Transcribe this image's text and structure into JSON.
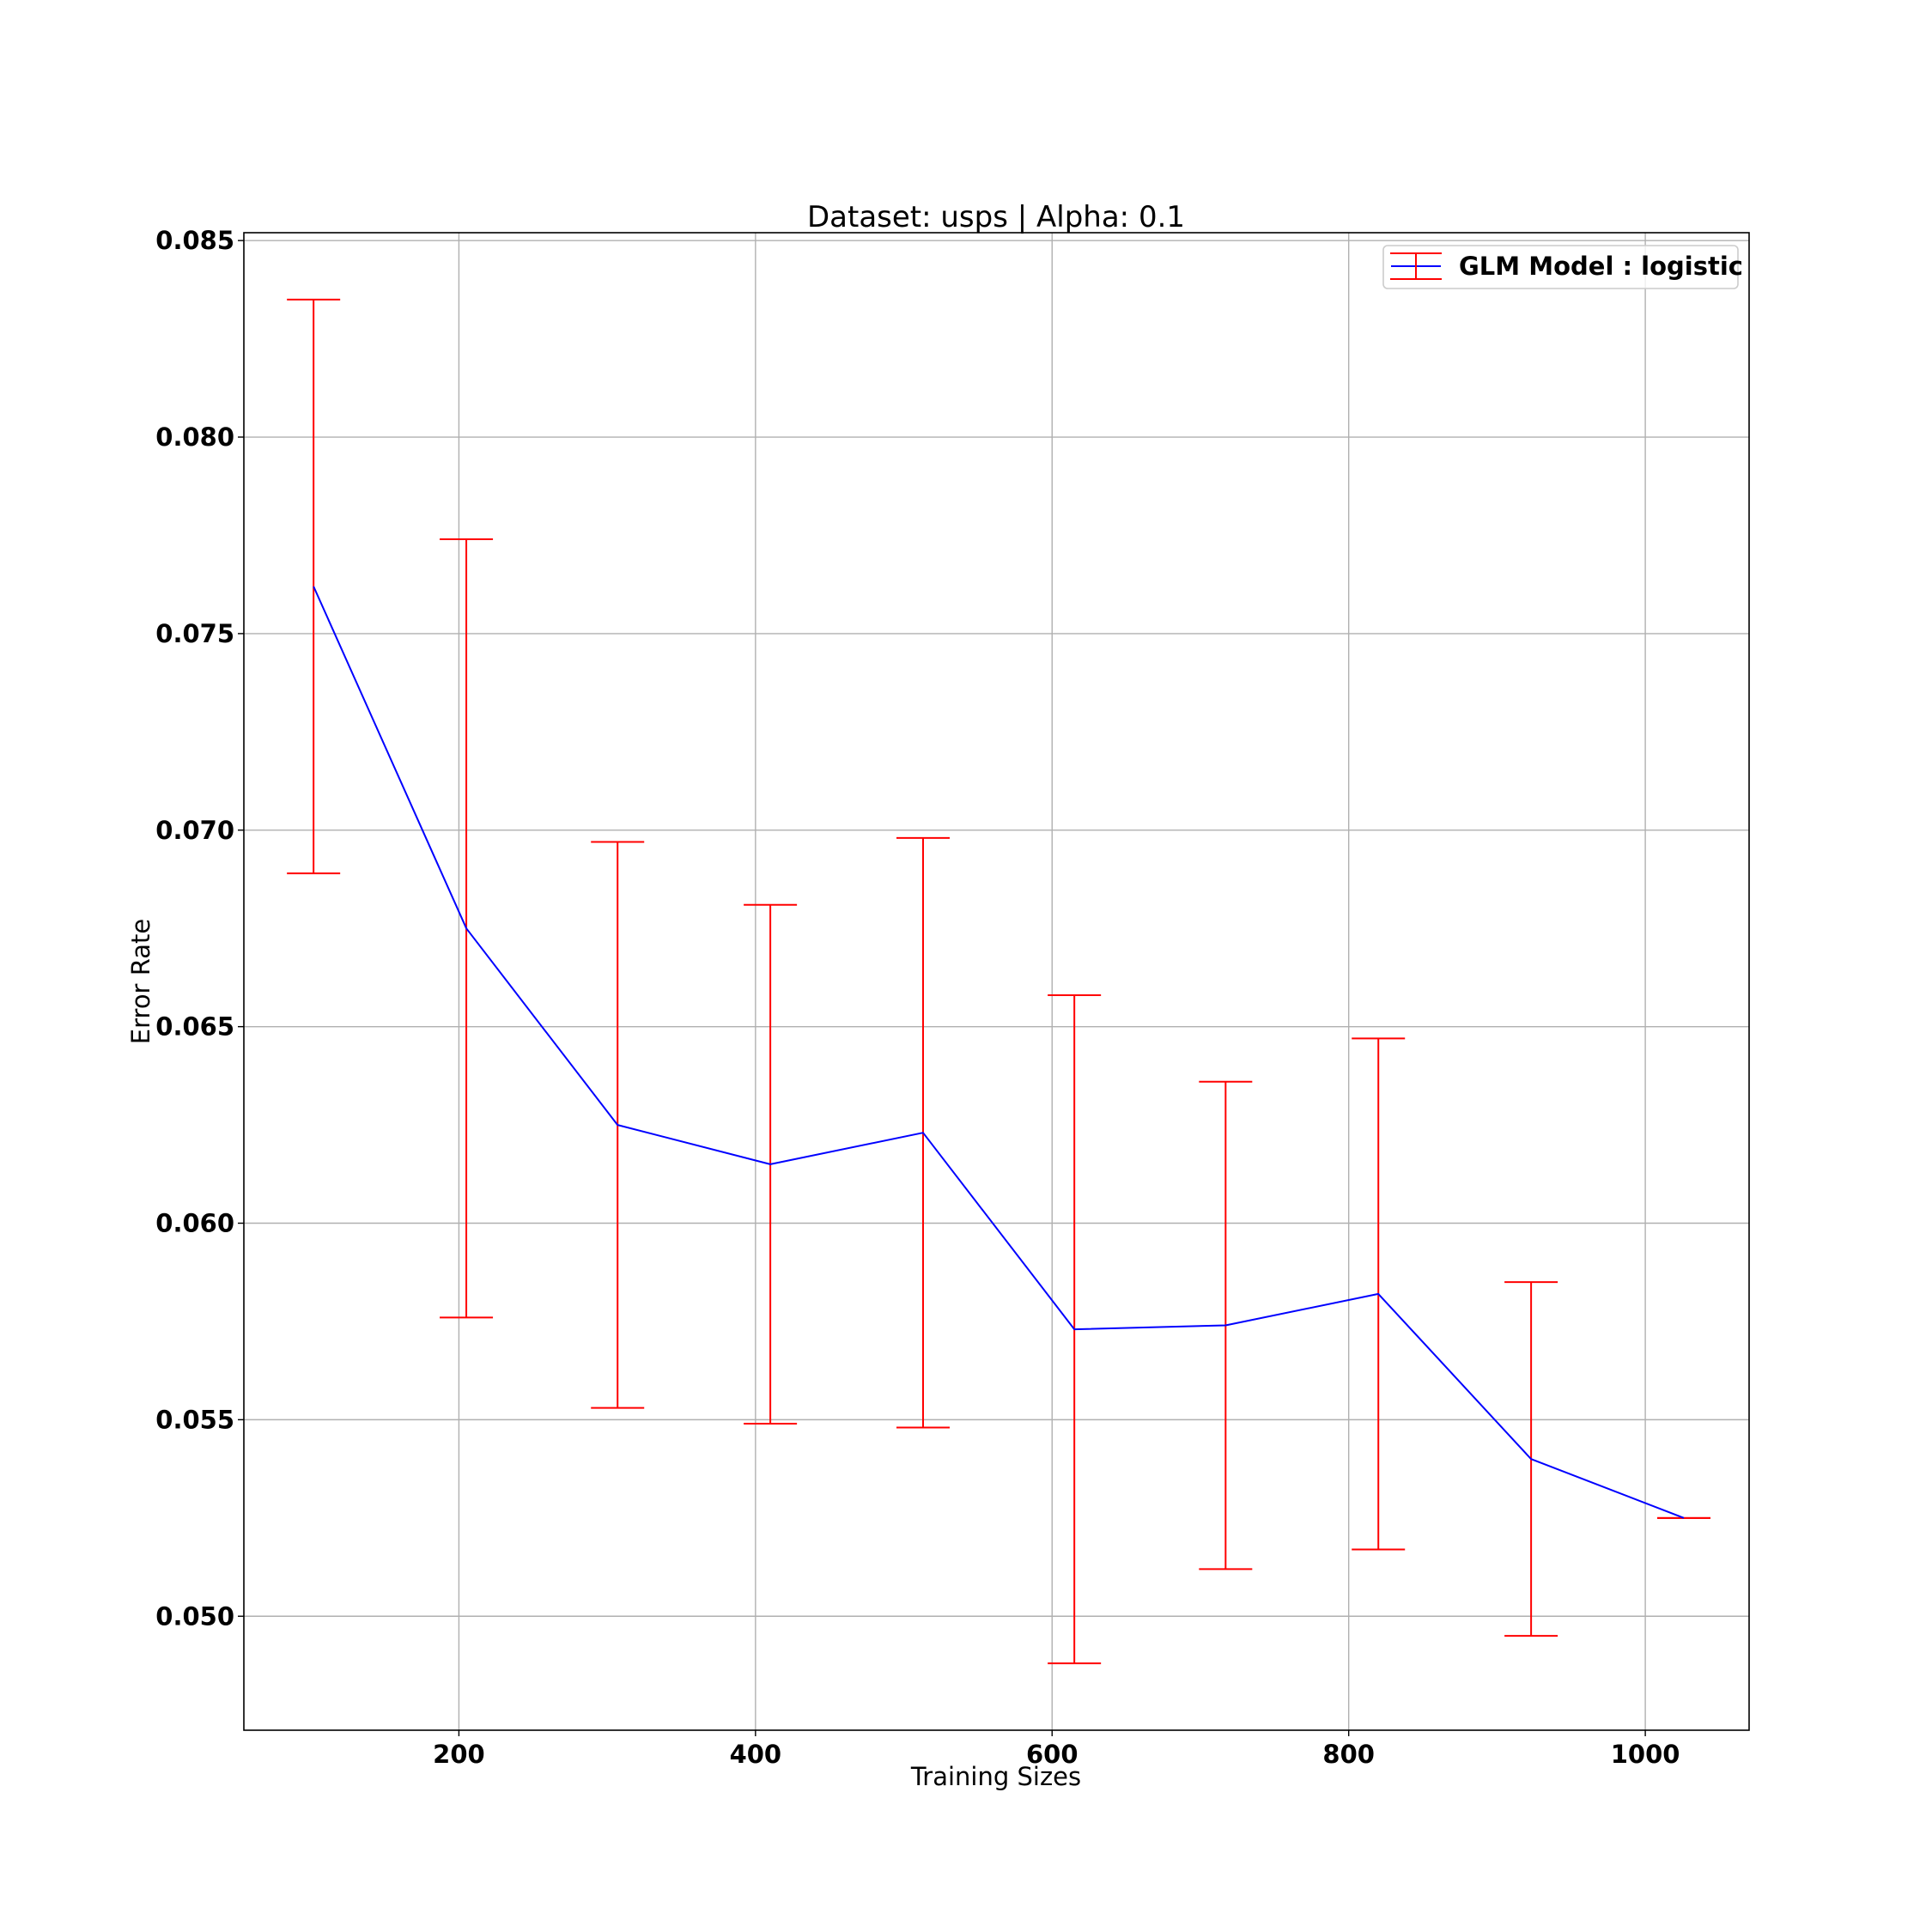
{
  "chart_data": {
    "type": "line",
    "title": "Dataset: usps | Alpha: 0.1",
    "xlabel": "Training Sizes",
    "ylabel": "Error Rate",
    "xlim": [
      55,
      1070
    ],
    "ylim": [
      0.0471,
      0.0852
    ],
    "xticks": [
      200,
      400,
      600,
      800,
      1000
    ],
    "xtick_labels": [
      "200",
      "400",
      "600",
      "800",
      "1000"
    ],
    "yticks": [
      0.05,
      0.055,
      0.06,
      0.065,
      0.07,
      0.075,
      0.08,
      0.085
    ],
    "ytick_labels": [
      "0.050",
      "0.055",
      "0.060",
      "0.065",
      "0.070",
      "0.075",
      "0.080",
      "0.085"
    ],
    "grid": true,
    "legend_position": "top-right",
    "series": [
      {
        "name": "GLM Model : logistic",
        "line_color": "#0000ff",
        "errorbar_color": "#ff0000",
        "x": [
          102,
          205,
          307,
          410,
          513,
          615,
          717,
          820,
          923,
          1026
        ],
        "y": [
          0.0762,
          0.0675,
          0.0625,
          0.0615,
          0.0623,
          0.0573,
          0.0574,
          0.0582,
          0.054,
          0.0525
        ],
        "yerr": [
          0.0073,
          0.0099,
          0.0072,
          0.0066,
          0.0075,
          0.0085,
          0.0062,
          0.0065,
          0.0045,
          0.0
        ]
      }
    ]
  }
}
